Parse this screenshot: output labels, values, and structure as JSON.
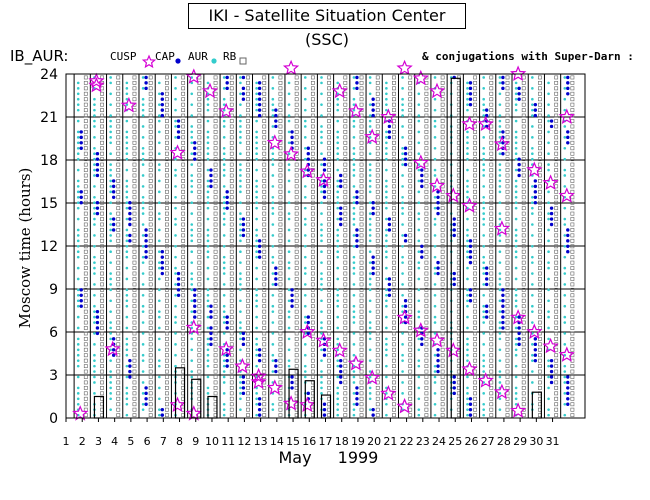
{
  "header": {
    "title": "IKI - Satellite Situation Center (SSC)",
    "station": "IB_AUR:",
    "legend_cusp": "CUSP",
    "legend_cap": "CAP",
    "legend_aur": "AUR",
    "legend_rb": "RB",
    "conjugations": "& conjugations with Super-Darn :"
  },
  "colors": {
    "cusp": "#d400d4",
    "cap": "#0000cc",
    "aur": "#33cccc",
    "rb": "#666666",
    "grid": "#000000"
  },
  "chart_data": {
    "type": "scatter",
    "title": "IKI - Satellite Situation Center (SSC)",
    "xlabel": "May",
    "xlabel_year": "1999",
    "ylabel": "Moscow time (hours)",
    "xlim": [
      1,
      31
    ],
    "ylim": [
      0,
      24
    ],
    "x_ticks": [
      1,
      2,
      3,
      4,
      5,
      6,
      7,
      8,
      9,
      10,
      11,
      12,
      13,
      14,
      15,
      16,
      17,
      18,
      19,
      20,
      21,
      22,
      23,
      24,
      25,
      26,
      27,
      28,
      29,
      30,
      31
    ],
    "y_ticks": [
      0,
      3,
      6,
      9,
      12,
      15,
      18,
      21,
      24
    ],
    "series": [
      {
        "name": "CUSP",
        "marker": "star",
        "points": [
          [
            2,
            0.3
          ],
          [
            3,
            23.5
          ],
          [
            3,
            23.2
          ],
          [
            4,
            4.8
          ],
          [
            5,
            21.8
          ],
          [
            8,
            18.5
          ],
          [
            8,
            0.9
          ],
          [
            9,
            23.8
          ],
          [
            9,
            6.3
          ],
          [
            9,
            0.3
          ],
          [
            10,
            22.8
          ],
          [
            11,
            21.4
          ],
          [
            11,
            4.8
          ],
          [
            12,
            3.6
          ],
          [
            13,
            2.9
          ],
          [
            13,
            2.5
          ],
          [
            14,
            19.2
          ],
          [
            14,
            2.1
          ],
          [
            15,
            24.4
          ],
          [
            15,
            18.4
          ],
          [
            15,
            1.0
          ],
          [
            16,
            17.2
          ],
          [
            16,
            6.0
          ],
          [
            16,
            0.9
          ],
          [
            17,
            16.6
          ],
          [
            17,
            5.4
          ],
          [
            18,
            22.8
          ],
          [
            18,
            4.7
          ],
          [
            19,
            21.4
          ],
          [
            19,
            3.8
          ],
          [
            20,
            19.6
          ],
          [
            20,
            2.8
          ],
          [
            21,
            21.0
          ],
          [
            21,
            1.7
          ],
          [
            22,
            24.4
          ],
          [
            22,
            7.0
          ],
          [
            22,
            0.8
          ],
          [
            23,
            23.7
          ],
          [
            23,
            17.8
          ],
          [
            23,
            6.1
          ],
          [
            24,
            22.8
          ],
          [
            24,
            16.2
          ],
          [
            24,
            5.4
          ],
          [
            25,
            15.5
          ],
          [
            25,
            4.7
          ],
          [
            26,
            20.5
          ],
          [
            26,
            14.8
          ],
          [
            26,
            3.4
          ],
          [
            27,
            20.5
          ],
          [
            27,
            2.6
          ],
          [
            28,
            19.1
          ],
          [
            28,
            13.2
          ],
          [
            28,
            1.8
          ],
          [
            29,
            24.0
          ],
          [
            29,
            7.0
          ],
          [
            29,
            0.5
          ],
          [
            30,
            17.3
          ],
          [
            30,
            6.0
          ],
          [
            31,
            16.4
          ],
          [
            31,
            5.0
          ],
          [
            32,
            21.0
          ],
          [
            32,
            15.5
          ],
          [
            32,
            4.4
          ]
        ]
      },
      {
        "name": "CAP",
        "marker": "dot"
      },
      {
        "name": "AUR",
        "marker": "dot"
      },
      {
        "name": "RB",
        "marker": "square"
      }
    ]
  }
}
